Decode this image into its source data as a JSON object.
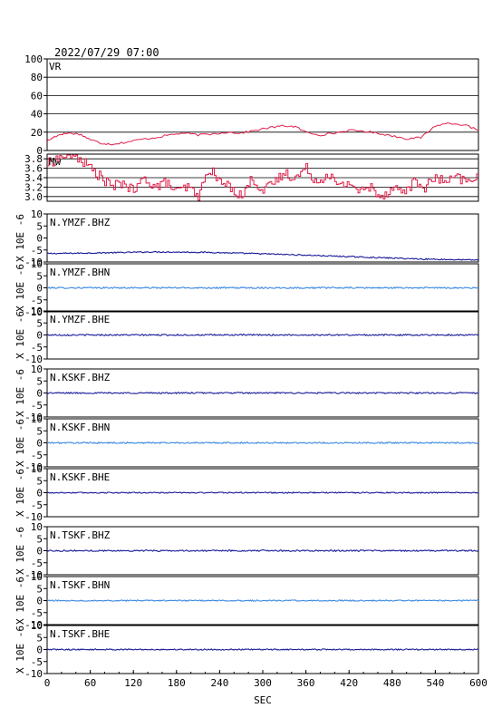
{
  "header": {
    "datetime": "2022/07/29 07:00"
  },
  "colors": {
    "vr": "#e0204a",
    "mw": "#e0204a",
    "dark_trace": "#1a1a9a",
    "light_trace": "#3a88e0",
    "axis": "#000000"
  },
  "chart_data": [
    {
      "type": "line",
      "label": "VR",
      "ylim": [
        0,
        100
      ],
      "yticks": [
        "100",
        "80",
        "60",
        "40",
        "20",
        "0"
      ],
      "grid": true,
      "x": [
        0,
        10,
        20,
        30,
        45,
        60,
        75,
        90,
        110,
        130,
        150,
        170,
        190,
        210,
        230,
        250,
        270,
        290,
        310,
        330,
        345,
        360,
        380,
        400,
        420,
        440,
        460,
        480,
        500,
        520,
        540,
        560,
        580,
        600
      ],
      "y": [
        10,
        15,
        18,
        19,
        18,
        12,
        8,
        7,
        9,
        12,
        14,
        17,
        19,
        17,
        18,
        20,
        19,
        22,
        25,
        27,
        26,
        20,
        17,
        19,
        22,
        21,
        19,
        16,
        13,
        14,
        27,
        30,
        28,
        22
      ]
    },
    {
      "type": "line",
      "label": "Mw",
      "ylim": [
        2.9,
        3.9
      ],
      "yticks": [
        "3.8",
        "3.6",
        "3.4",
        "3.2",
        "3.0"
      ],
      "grid": true,
      "x": [
        0,
        15,
        30,
        45,
        60,
        75,
        90,
        105,
        120,
        135,
        150,
        165,
        180,
        195,
        210,
        225,
        240,
        255,
        270,
        285,
        300,
        315,
        330,
        345,
        360,
        375,
        390,
        405,
        420,
        435,
        450,
        465,
        480,
        495,
        510,
        525,
        540,
        555,
        570,
        585,
        600
      ],
      "y": [
        3.7,
        3.8,
        3.9,
        3.8,
        3.6,
        3.4,
        3.2,
        3.3,
        3.1,
        3.4,
        3.2,
        3.3,
        3.1,
        3.2,
        3.0,
        3.6,
        3.3,
        3.2,
        3.0,
        3.4,
        3.1,
        3.3,
        3.5,
        3.4,
        3.6,
        3.3,
        3.5,
        3.2,
        3.3,
        3.1,
        3.2,
        3.0,
        3.2,
        3.1,
        3.3,
        3.2,
        3.4,
        3.3,
        3.4,
        3.3,
        3.5
      ]
    }
  ],
  "channel_axis": {
    "ylabel": "X 10E -6",
    "ylim": [
      -10,
      10
    ],
    "yticks": [
      "10",
      "5",
      "0",
      "-5",
      "-10"
    ]
  },
  "channels": [
    {
      "label": "N.YMZF.BHZ",
      "trace": "dark",
      "baseline": [
        -6.5,
        -6.2,
        -5.8,
        -6.0,
        -6.6,
        -7.3,
        -8.1,
        -8.8,
        -9.2
      ],
      "noise": 0.25
    },
    {
      "label": "N.YMZF.BHN",
      "trace": "light",
      "baseline": [
        0,
        0,
        0,
        0,
        0,
        0,
        0,
        0,
        0
      ],
      "noise": 0.3
    },
    {
      "label": "N.YMZF.BHE",
      "trace": "dark",
      "baseline": [
        0,
        0,
        0,
        0,
        0,
        0,
        0,
        0,
        0
      ],
      "noise": 0.3
    },
    {
      "label": "N.KSKF.BHZ",
      "trace": "dark",
      "baseline": [
        0,
        0,
        0,
        0,
        0,
        0,
        0,
        0,
        0
      ],
      "noise": 0.3
    },
    {
      "label": "N.KSKF.BHN",
      "trace": "light",
      "baseline": [
        0,
        0,
        0,
        0,
        0,
        0,
        0,
        0,
        0
      ],
      "noise": 0.3
    },
    {
      "label": "N.KSKF.BHE",
      "trace": "dark",
      "baseline": [
        0,
        0,
        0,
        0,
        0,
        0,
        0,
        0,
        0
      ],
      "noise": 0.25
    },
    {
      "label": "N.TSKF.BHZ",
      "trace": "dark",
      "baseline": [
        0,
        0,
        0,
        0,
        0,
        0,
        0,
        0,
        0
      ],
      "noise": 0.3
    },
    {
      "label": "N.TSKF.BHN",
      "trace": "light",
      "baseline": [
        0,
        0,
        0,
        0,
        0,
        0,
        0,
        0,
        0
      ],
      "noise": 0.25
    },
    {
      "label": "N.TSKF.BHE",
      "trace": "dark",
      "baseline": [
        0,
        0,
        0,
        0,
        0,
        0,
        0,
        0,
        0
      ],
      "noise": 0.25
    }
  ],
  "x_axis": {
    "label": "SEC",
    "xlim": [
      0,
      600
    ],
    "ticks": [
      "0",
      "60",
      "120",
      "180",
      "240",
      "300",
      "360",
      "420",
      "480",
      "540",
      "600"
    ]
  }
}
